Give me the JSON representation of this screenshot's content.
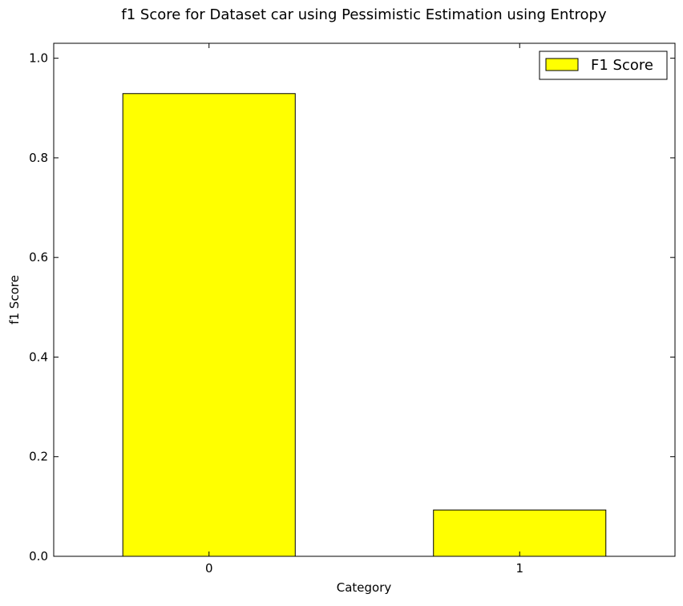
{
  "chart_data": {
    "type": "bar",
    "title": "f1 Score for Dataset car using Pessimistic Estimation using Entropy",
    "xlabel": "Category",
    "ylabel": "f1 Score",
    "categories": [
      "0",
      "1"
    ],
    "series": [
      {
        "name": "F1 Score",
        "values": [
          0.929,
          0.093
        ],
        "color": "#ffff00"
      }
    ],
    "ylim": [
      0,
      1.03
    ],
    "yticks": [
      0.0,
      0.2,
      0.4,
      0.6,
      0.8,
      1.0
    ],
    "ytick_labels": [
      "0.0",
      "0.2",
      "0.4",
      "0.6",
      "0.8",
      "1.0"
    ],
    "grid": false,
    "legend": {
      "position": "top-right",
      "entries": [
        "F1 Score"
      ]
    },
    "colors": {
      "bar": "#ffff00",
      "edge": "#000000",
      "background": "#ffffff"
    }
  }
}
